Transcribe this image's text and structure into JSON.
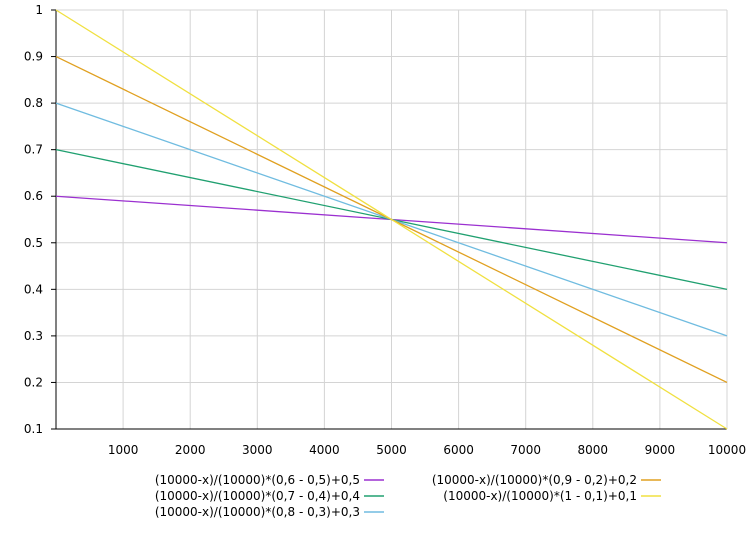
{
  "chart_data": {
    "type": "line",
    "title": "",
    "xlabel": "",
    "ylabel": "",
    "xlim": [
      0,
      10000
    ],
    "ylim": [
      0.1,
      1
    ],
    "grid": true,
    "x_ticks": [
      "1000",
      "2000",
      "3000",
      "4000",
      "5000",
      "6000",
      "7000",
      "8000",
      "9000",
      "10000"
    ],
    "y_ticks": [
      "0.1",
      "0.2",
      "0.3",
      "0.4",
      "0.5",
      "0.6",
      "0.7",
      "0.8",
      "0.9",
      "1"
    ],
    "x": [
      0,
      5000,
      10000
    ],
    "series": [
      {
        "name": "(10000-x)/(10000)*(0,6 - 0,5)+0,5",
        "color": "#9b30d0",
        "values": [
          0.6,
          0.55,
          0.5
        ]
      },
      {
        "name": "(10000-x)/(10000)*(0,7 - 0,4)+0,4",
        "color": "#20a070",
        "values": [
          0.7,
          0.55,
          0.4
        ]
      },
      {
        "name": "(10000-x)/(10000)*(0,8 - 0,3)+0,3",
        "color": "#70bce0",
        "values": [
          0.8,
          0.55,
          0.3
        ]
      },
      {
        "name": "(10000-x)/(10000)*(0,9 - 0,2)+0,2",
        "color": "#e0a020",
        "values": [
          0.9,
          0.55,
          0.2
        ]
      },
      {
        "name": "(10000-x)/(10000)*(1 - 0,1)+0,1",
        "color": "#f0e040",
        "values": [
          1.0,
          0.55,
          0.1
        ]
      }
    ],
    "legend_position": "bottom"
  }
}
